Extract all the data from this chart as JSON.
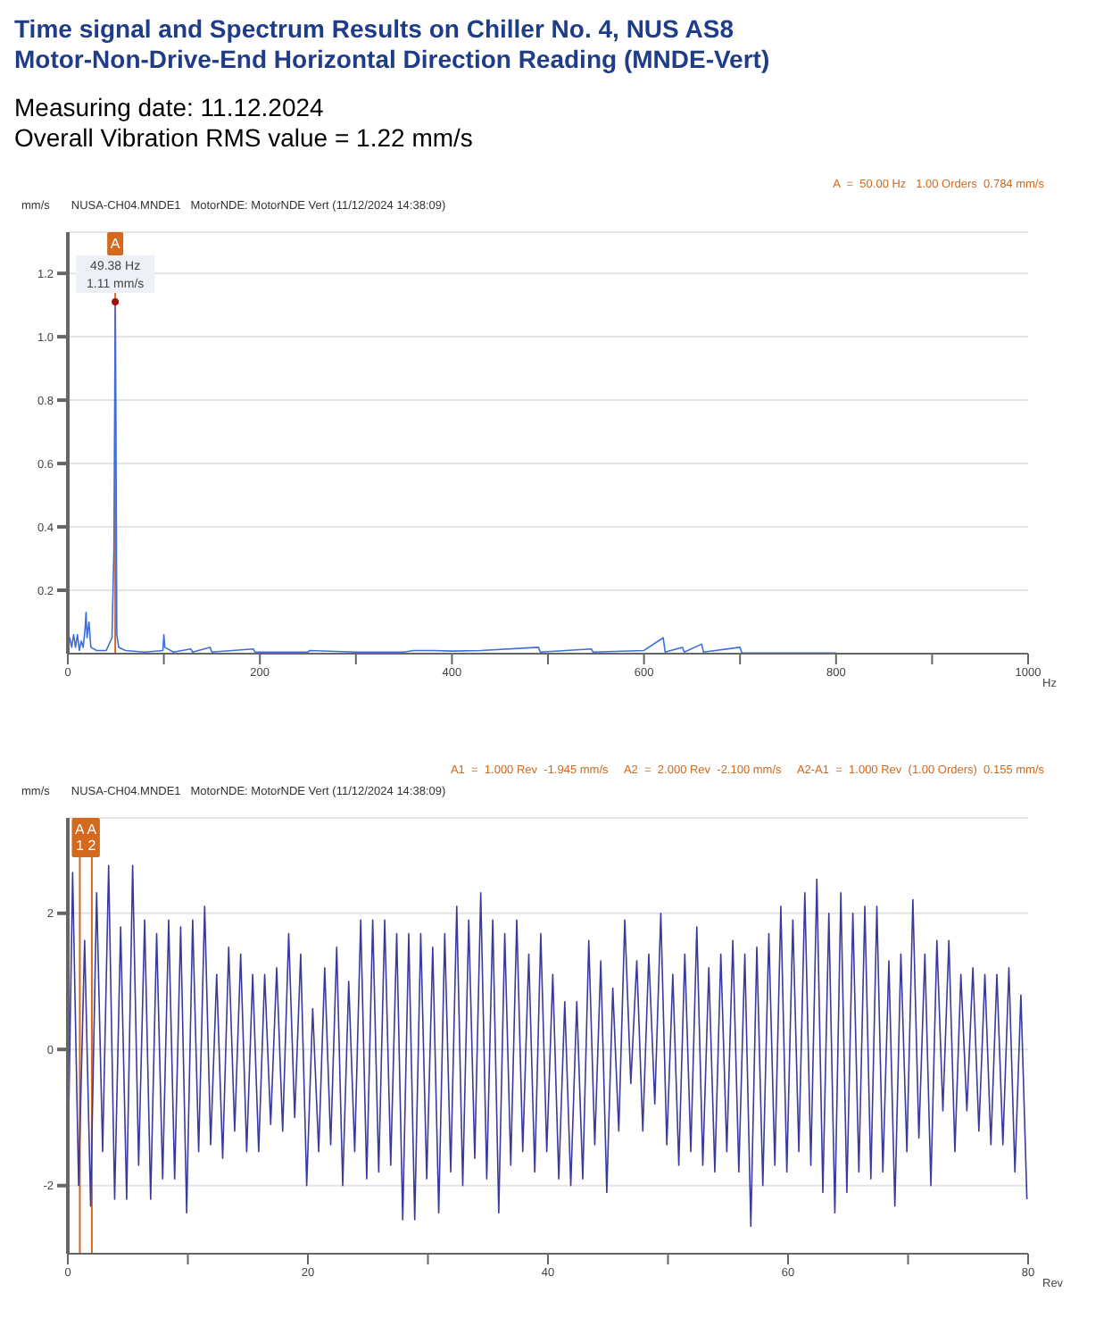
{
  "chart_data": [
    {
      "type": "line",
      "title": "Time signal and Spectrum Results on Chiller No. 4, NUS AS8\nMotor-Non-Drive-End Horizontal Direction Reading (MNDE-Vert)",
      "subtitle": "Measuring date: 11.12.2024\nOverall Vibration RMS value = 1.22 mm/s",
      "xlabel": "Hz",
      "ylabel": "mm/s",
      "annotations": [
        "A  =  50.00 Hz   1.00 Orders  0.784 mm/s",
        "NUSA-CH04.MNDE1   MotorNDE: MotorNDE Vert (11/12/2024 14:38:09)",
        {
          "text": "49.38 Hz\n1.11 mm/s",
          "x": 49.38,
          "y": 1.11
        }
      ],
      "x": [
        0,
        2,
        4,
        6,
        8,
        10,
        12,
        14,
        16,
        18,
        19,
        20,
        22,
        24,
        30,
        40,
        46,
        48,
        49.38,
        50,
        51,
        53,
        60,
        80,
        99,
        100,
        101,
        110,
        128,
        130,
        148,
        150,
        193,
        195,
        250,
        252,
        300,
        350,
        360,
        380,
        400,
        430,
        490,
        492,
        545,
        547,
        600,
        620,
        622,
        640,
        642,
        660,
        662,
        700,
        702,
        800
      ],
      "series": [
        {
          "color": "#3d6ee0",
          "values": [
            0.01,
            0.05,
            0.02,
            0.06,
            0.02,
            0.06,
            0.01,
            0.04,
            0.02,
            0.08,
            0.13,
            0.05,
            0.1,
            0.02,
            0.01,
            0.01,
            0.05,
            0.33,
            1.11,
            0.78,
            0.06,
            0.02,
            0.01,
            0.005,
            0.01,
            0.06,
            0.02,
            0.005,
            0.015,
            0.005,
            0.02,
            0.005,
            0.015,
            0.005,
            0.005,
            0.01,
            0.005,
            0.005,
            0.01,
            0.01,
            0.008,
            0.01,
            0.02,
            0.005,
            0.015,
            0.005,
            0.01,
            0.05,
            0.005,
            0.02,
            0.005,
            0.03,
            0.005,
            0.02,
            0.002,
            0.002
          ]
        }
      ],
      "xlim": [
        0,
        1000
      ],
      "xticks": [
        0,
        {
          "value": 100,
          "label": null
        },
        200,
        {
          "value": 300,
          "label": null
        },
        400,
        {
          "value": 500,
          "label": null
        },
        600,
        {
          "value": 700,
          "label": null
        },
        800,
        {
          "value": 900,
          "label": null
        },
        1000
      ],
      "ylim": [
        0,
        1.33
      ],
      "yticks": [
        0.2,
        0.4,
        0.6,
        0.8,
        {
          "value": 1,
          "label": "1.0"
        },
        1.2
      ],
      "ref_lines": [
        {
          "axis": "x",
          "value": 49.38,
          "label": "A",
          "color": "#d2691e"
        }
      ],
      "grid": "y",
      "marker": "none",
      "line_style": "solid"
    },
    {
      "type": "line",
      "xlabel": "Rev",
      "ylabel": "mm/s",
      "annotations": [
        "A1  =  1.000 Rev  -1.945 mm/s     A2  =  2.000 Rev  -2.100 mm/s     A2-A1  =  1.000 Rev  (1.00 Orders)  0.155 mm/s",
        "NUSA-CH04.MNDE1   MotorNDE: MotorNDE Vert (11/12/2024 14:38:09)"
      ],
      "x": [
        0,
        0.4,
        0.9,
        1.4,
        1.9,
        2.4,
        2.9,
        3.4,
        3.9,
        4.4,
        4.9,
        5.4,
        5.9,
        6.4,
        6.9,
        7.4,
        7.9,
        8.4,
        8.9,
        9.4,
        9.9,
        10.4,
        10.9,
        11.4,
        11.9,
        12.4,
        12.9,
        13.4,
        13.9,
        14.4,
        14.9,
        15.4,
        15.9,
        16.4,
        16.9,
        17.4,
        17.9,
        18.4,
        18.9,
        19.4,
        19.9,
        20.4,
        20.9,
        21.4,
        21.9,
        22.4,
        22.9,
        23.4,
        23.9,
        24.4,
        24.9,
        25.4,
        25.9,
        26.4,
        26.9,
        27.4,
        27.9,
        28.4,
        28.9,
        29.4,
        29.9,
        30.4,
        30.9,
        31.4,
        31.9,
        32.4,
        32.9,
        33.4,
        33.9,
        34.4,
        34.9,
        35.4,
        35.9,
        36.4,
        36.9,
        37.4,
        37.9,
        38.4,
        38.9,
        39.4,
        39.9,
        40.4,
        40.9,
        41.4,
        41.9,
        42.4,
        42.9,
        43.4,
        43.9,
        44.4,
        44.9,
        45.4,
        45.9,
        46.4,
        46.9,
        47.4,
        47.9,
        48.4,
        48.9,
        49.4,
        49.9,
        50.4,
        50.9,
        51.4,
        51.9,
        52.4,
        52.9,
        53.4,
        53.9,
        54.4,
        54.9,
        55.4,
        55.9,
        56.4,
        56.9,
        57.4,
        57.9,
        58.4,
        58.9,
        59.4,
        59.9,
        60.4,
        60.9,
        61.4,
        61.9,
        62.4,
        62.9,
        63.4,
        63.9,
        64.4,
        64.9,
        65.4,
        65.9,
        66.4,
        66.9,
        67.4,
        67.9,
        68.4,
        68.9,
        69.4,
        69.9,
        70.4,
        70.9,
        71.4,
        71.9,
        72.4,
        72.9,
        73.4,
        73.9,
        74.4,
        74.9,
        75.4,
        75.9,
        76.4,
        76.9,
        77.4,
        77.9,
        78.4,
        78.9,
        79.4,
        79.9
      ],
      "series": [
        {
          "color": "#3a3a9e",
          "values": [
            -1.8,
            2.6,
            -2.0,
            1.6,
            -2.3,
            2.3,
            -1.5,
            2.7,
            -2.2,
            1.8,
            -2.2,
            2.7,
            -1.7,
            1.9,
            -2.2,
            1.7,
            -1.9,
            1.9,
            -1.9,
            1.8,
            -2.4,
            1.9,
            -1.5,
            2.1,
            -1.4,
            1.1,
            -1.6,
            1.5,
            -1.2,
            1.4,
            -1.5,
            1.1,
            -1.5,
            1.1,
            -1.1,
            1.2,
            -1.2,
            1.7,
            -1.0,
            1.4,
            -2.0,
            0.6,
            -1.5,
            1.2,
            -1.4,
            1.5,
            -2.0,
            1.0,
            -1.5,
            1.9,
            -1.9,
            1.9,
            -1.8,
            1.9,
            -1.7,
            1.7,
            -2.5,
            1.7,
            -2.5,
            1.7,
            -1.9,
            1.5,
            -2.4,
            1.7,
            -1.8,
            2.1,
            -2.0,
            1.9,
            -1.6,
            2.3,
            -1.9,
            1.9,
            -2.4,
            1.7,
            -1.7,
            1.9,
            -1.5,
            1.4,
            -1.8,
            1.7,
            -1.5,
            1.1,
            -1.9,
            0.7,
            -2.0,
            0.7,
            -1.9,
            1.6,
            -1.4,
            1.3,
            -2.1,
            0.9,
            -1.2,
            1.9,
            -0.5,
            1.3,
            -1.2,
            1.4,
            -0.8,
            2.0,
            -1.4,
            1.1,
            -1.7,
            1.4,
            -1.5,
            1.8,
            -1.7,
            1.2,
            -1.8,
            1.4,
            -1.5,
            1.6,
            -1.8,
            1.4,
            -2.6,
            1.5,
            -2.0,
            1.7,
            -1.7,
            2.1,
            -1.8,
            1.9,
            -1.5,
            2.3,
            -1.7,
            2.5,
            -2.1,
            2.0,
            -2.4,
            2.3,
            -2.1,
            2.0,
            -1.8,
            2.1,
            -1.9,
            2.1,
            -1.8,
            1.3,
            -2.3,
            1.4,
            -1.5,
            2.2,
            -1.3,
            1.4,
            -2.0,
            1.6,
            -0.9,
            1.6,
            -1.5,
            1.1,
            -0.9,
            1.2,
            -1.2,
            1.1,
            -1.4,
            1.1,
            -1.4,
            1.2,
            -1.8,
            0.8,
            -2.2
          ]
        }
      ],
      "xlim": [
        0,
        80
      ],
      "xticks": [
        0,
        {
          "value": 10,
          "label": null
        },
        20,
        {
          "value": 30,
          "label": null
        },
        40,
        {
          "value": 50,
          "label": null
        },
        60,
        {
          "value": 70,
          "label": null
        },
        80
      ],
      "ylim": [
        -3,
        3.4
      ],
      "yticks": [
        -2,
        0,
        2
      ],
      "ref_lines": [
        {
          "axis": "x",
          "value": 1,
          "label": "A1",
          "color": "#d2691e"
        },
        {
          "axis": "x",
          "value": 2,
          "label": "A2",
          "color": "#d2691e"
        }
      ],
      "grid": "y",
      "marker": "none",
      "line_style": "solid"
    }
  ]
}
